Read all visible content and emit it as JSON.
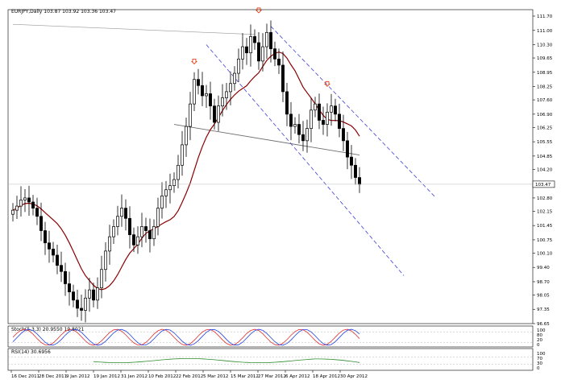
{
  "window": {
    "header": "EURJPY,Daily  103.87 103.92 103.36 103.47"
  },
  "colors": {
    "background": "#ffffff",
    "candle": "#000000",
    "moving_average": "#8b0000",
    "channel": "#3f3fd6",
    "neckline": "#6e6e6e",
    "current_price_box": "#ffffff",
    "stoch_main": "#e03030",
    "stoch_signal": "#2040e0",
    "rsi": "#2e8b2e",
    "arrow": "#e03000"
  },
  "price_axis": {
    "labels": [
      "111.70",
      "111.00",
      "110.30",
      "109.65",
      "108.95",
      "108.25",
      "107.60",
      "106.90",
      "106.25",
      "105.55",
      "104.85",
      "104.20",
      "102.80",
      "102.15",
      "101.45",
      "100.75",
      "100.10",
      "99.40",
      "98.70",
      "98.05",
      "97.35",
      "96.65"
    ],
    "current_price": "103.47"
  },
  "time_axis": {
    "labels": [
      "16 Dec 2011",
      "28 Dec 2011",
      "9 Jan 2012",
      "19 Jan 2012",
      "31 Jan 2012",
      "10 Feb 2012",
      "22 Feb 2012",
      "5 Mar 2012",
      "15 Mar 2012",
      "27 Mar 2012",
      "6 Apr 2012",
      "18 Apr 2012",
      "30 Apr 2012"
    ]
  },
  "stoch_panel": {
    "label": "Stoch(5,3,3) 20.9550 19.8021",
    "scale_labels": [
      "100",
      "80",
      "20",
      "0"
    ]
  },
  "rsi_panel": {
    "label": "RSI(14) 30.6956",
    "scale_labels": [
      "100",
      "70",
      "30",
      "0"
    ]
  },
  "chart_data": {
    "type": "candlestick",
    "symbol": "EURJPY",
    "timeframe": "Daily",
    "ohlc_last": {
      "open": 103.87,
      "high": 103.92,
      "low": 103.36,
      "close": 103.47
    },
    "ylim": [
      96.65,
      111.7
    ],
    "closes": [
      102.2,
      102.4,
      102.7,
      102.8,
      102.6,
      102.3,
      101.9,
      101.2,
      100.6,
      100.3,
      100.0,
      99.5,
      99.2,
      98.6,
      98.2,
      97.8,
      97.4,
      97.3,
      97.9,
      98.3,
      97.8,
      98.4,
      99.3,
      100.2,
      100.9,
      101.4,
      101.9,
      102.3,
      101.8,
      101.0,
      100.5,
      100.9,
      101.4,
      101.2,
      100.8,
      101.4,
      102.3,
      102.9,
      103.2,
      103.4,
      103.7,
      104.4,
      105.4,
      106.3,
      107.4,
      108.6,
      108.3,
      107.8,
      107.9,
      107.3,
      106.5,
      107.3,
      107.7,
      108.0,
      108.4,
      108.9,
      109.6,
      110.2,
      109.9,
      110.7,
      110.4,
      109.5,
      110.2,
      110.9,
      110.1,
      109.6,
      109.3,
      108.0,
      106.9,
      106.3,
      106.4,
      105.9,
      105.6,
      106.2,
      107.1,
      107.4,
      106.6,
      106.4,
      107.0,
      107.3,
      106.9,
      106.2,
      105.6,
      104.8,
      104.4,
      103.8,
      103.47
    ]
  }
}
